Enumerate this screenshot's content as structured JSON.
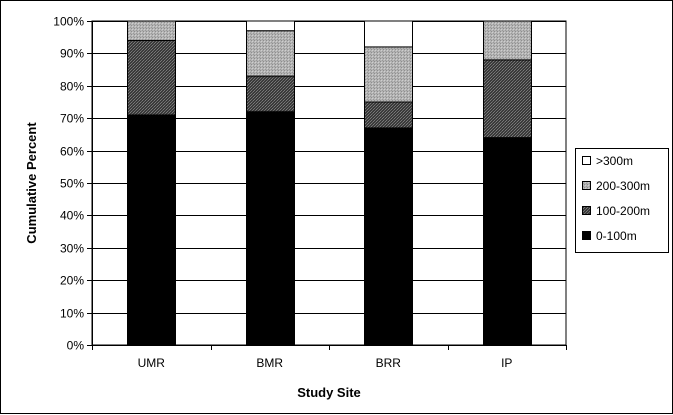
{
  "chart_data": {
    "type": "bar",
    "stacked": true,
    "categories": [
      "UMR",
      "BMR",
      "BRR",
      "IP"
    ],
    "series": [
      {
        "name": "0-100m",
        "color": "#000000",
        "values": [
          71,
          72,
          67,
          64
        ]
      },
      {
        "name": "100-200m",
        "color": "#555555",
        "values": [
          23,
          11,
          8,
          24
        ]
      },
      {
        "name": "200-300m",
        "color": "#a9a9a9",
        "values": [
          6,
          14,
          17,
          12
        ]
      },
      {
        "name": ">300m",
        "color": "#ffffff",
        "values": [
          0,
          3,
          8,
          0
        ]
      }
    ],
    "xlabel": "Study Site",
    "ylabel": "Cumulative Percent",
    "ylim": [
      0,
      100
    ],
    "ytick_step": 10,
    "ytick_suffix": "%",
    "grid": true,
    "legend_position": "right",
    "legend_order": [
      ">300m",
      "200-300m",
      "100-200m",
      "0-100m"
    ]
  }
}
